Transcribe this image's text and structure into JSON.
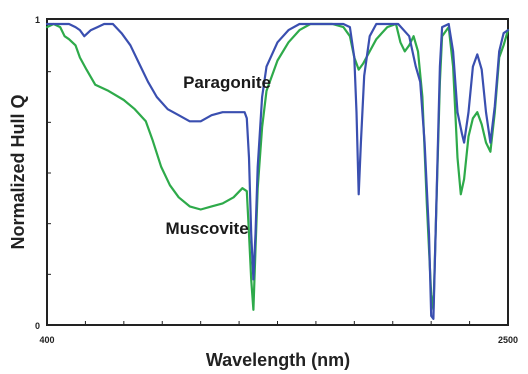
{
  "chart_data": {
    "type": "line",
    "title": "",
    "xlabel": "Wavelength (nm)",
    "ylabel": "Normalized Hull Q",
    "xlim": [
      400,
      2500
    ],
    "ylim": [
      0,
      1
    ],
    "x_tick_labels": [
      "400",
      "2500"
    ],
    "y_tick_labels": [
      "0",
      "1"
    ],
    "grid": false,
    "legend": "none (series labeled inline)",
    "series": [
      {
        "name": "Paragonite",
        "color": "#3a4fb0",
        "points": [
          [
            400,
            0.99
          ],
          [
            460,
            0.99
          ],
          [
            500,
            0.99
          ],
          [
            530,
            0.98
          ],
          [
            550,
            0.97
          ],
          [
            570,
            0.95
          ],
          [
            600,
            0.97
          ],
          [
            630,
            0.98
          ],
          [
            660,
            0.99
          ],
          [
            700,
            0.99
          ],
          [
            740,
            0.96
          ],
          [
            780,
            0.92
          ],
          [
            820,
            0.86
          ],
          [
            860,
            0.8
          ],
          [
            900,
            0.75
          ],
          [
            950,
            0.71
          ],
          [
            1000,
            0.69
          ],
          [
            1050,
            0.67
          ],
          [
            1100,
            0.67
          ],
          [
            1150,
            0.69
          ],
          [
            1200,
            0.7
          ],
          [
            1250,
            0.7
          ],
          [
            1280,
            0.7
          ],
          [
            1300,
            0.7
          ],
          [
            1310,
            0.68
          ],
          [
            1320,
            0.55
          ],
          [
            1330,
            0.3
          ],
          [
            1340,
            0.15
          ],
          [
            1350,
            0.3
          ],
          [
            1360,
            0.52
          ],
          [
            1380,
            0.75
          ],
          [
            1400,
            0.85
          ],
          [
            1450,
            0.93
          ],
          [
            1500,
            0.97
          ],
          [
            1550,
            0.99
          ],
          [
            1600,
            0.99
          ],
          [
            1650,
            0.99
          ],
          [
            1700,
            0.99
          ],
          [
            1750,
            0.99
          ],
          [
            1780,
            0.98
          ],
          [
            1800,
            0.88
          ],
          [
            1810,
            0.7
          ],
          [
            1820,
            0.43
          ],
          [
            1830,
            0.6
          ],
          [
            1845,
            0.82
          ],
          [
            1870,
            0.95
          ],
          [
            1900,
            0.99
          ],
          [
            1950,
            0.99
          ],
          [
            2000,
            0.99
          ],
          [
            2050,
            0.95
          ],
          [
            2080,
            0.85
          ],
          [
            2100,
            0.8
          ],
          [
            2120,
            0.6
          ],
          [
            2140,
            0.3
          ],
          [
            2150,
            0.03
          ],
          [
            2160,
            0.02
          ],
          [
            2170,
            0.3
          ],
          [
            2190,
            0.85
          ],
          [
            2200,
            0.98
          ],
          [
            2230,
            0.99
          ],
          [
            2250,
            0.9
          ],
          [
            2270,
            0.7
          ],
          [
            2290,
            0.63
          ],
          [
            2300,
            0.6
          ],
          [
            2320,
            0.7
          ],
          [
            2340,
            0.85
          ],
          [
            2360,
            0.89
          ],
          [
            2380,
            0.84
          ],
          [
            2400,
            0.7
          ],
          [
            2420,
            0.6
          ],
          [
            2440,
            0.72
          ],
          [
            2460,
            0.9
          ],
          [
            2480,
            0.96
          ],
          [
            2500,
            0.97
          ]
        ]
      },
      {
        "name": "Muscovite",
        "color": "#2eaa4a",
        "points": [
          [
            400,
            0.98
          ],
          [
            430,
            0.99
          ],
          [
            460,
            0.98
          ],
          [
            480,
            0.95
          ],
          [
            500,
            0.94
          ],
          [
            530,
            0.92
          ],
          [
            550,
            0.88
          ],
          [
            580,
            0.84
          ],
          [
            620,
            0.79
          ],
          [
            680,
            0.77
          ],
          [
            750,
            0.74
          ],
          [
            800,
            0.71
          ],
          [
            850,
            0.67
          ],
          [
            880,
            0.61
          ],
          [
            920,
            0.52
          ],
          [
            960,
            0.46
          ],
          [
            1000,
            0.42
          ],
          [
            1050,
            0.39
          ],
          [
            1100,
            0.38
          ],
          [
            1150,
            0.39
          ],
          [
            1200,
            0.4
          ],
          [
            1250,
            0.42
          ],
          [
            1290,
            0.45
          ],
          [
            1310,
            0.44
          ],
          [
            1320,
            0.3
          ],
          [
            1330,
            0.15
          ],
          [
            1340,
            0.05
          ],
          [
            1350,
            0.25
          ],
          [
            1360,
            0.45
          ],
          [
            1380,
            0.65
          ],
          [
            1400,
            0.77
          ],
          [
            1450,
            0.87
          ],
          [
            1500,
            0.93
          ],
          [
            1550,
            0.97
          ],
          [
            1600,
            0.99
          ],
          [
            1650,
            0.99
          ],
          [
            1700,
            0.99
          ],
          [
            1750,
            0.98
          ],
          [
            1780,
            0.95
          ],
          [
            1800,
            0.88
          ],
          [
            1820,
            0.84
          ],
          [
            1840,
            0.86
          ],
          [
            1870,
            0.9
          ],
          [
            1900,
            0.94
          ],
          [
            1950,
            0.98
          ],
          [
            1990,
            0.99
          ],
          [
            2010,
            0.93
          ],
          [
            2030,
            0.9
          ],
          [
            2050,
            0.92
          ],
          [
            2070,
            0.95
          ],
          [
            2090,
            0.9
          ],
          [
            2110,
            0.75
          ],
          [
            2130,
            0.4
          ],
          [
            2150,
            0.1
          ],
          [
            2160,
            0.05
          ],
          [
            2170,
            0.3
          ],
          [
            2190,
            0.8
          ],
          [
            2200,
            0.95
          ],
          [
            2230,
            0.98
          ],
          [
            2250,
            0.85
          ],
          [
            2270,
            0.55
          ],
          [
            2285,
            0.43
          ],
          [
            2300,
            0.48
          ],
          [
            2320,
            0.62
          ],
          [
            2340,
            0.68
          ],
          [
            2360,
            0.7
          ],
          [
            2380,
            0.66
          ],
          [
            2400,
            0.6
          ],
          [
            2420,
            0.57
          ],
          [
            2440,
            0.7
          ],
          [
            2460,
            0.88
          ],
          [
            2480,
            0.92
          ],
          [
            2500,
            0.97
          ]
        ]
      }
    ],
    "annotations": [
      {
        "text": "Paragonite",
        "x": 1020,
        "y": 0.78
      },
      {
        "text": "Muscovite",
        "x": 940,
        "y": 0.3
      }
    ]
  }
}
